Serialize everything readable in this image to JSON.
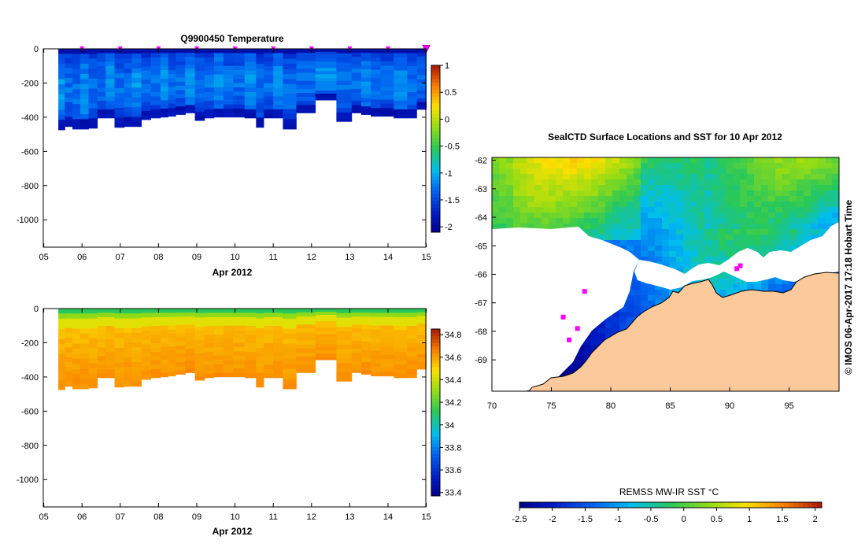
{
  "chart_data": [
    {
      "type": "heatmap",
      "id": "temperature",
      "title": "Q9900450  Temperature",
      "xlabel": "Apr 2012",
      "x_ticks": [
        "05",
        "06",
        "07",
        "08",
        "09",
        "10",
        "11",
        "12",
        "13",
        "14",
        "15"
      ],
      "xlim": [
        5,
        15
      ],
      "y_ticks": [
        "0",
        "-200",
        "-400",
        "-600",
        "-800",
        "-1000"
      ],
      "y_tick_values": [
        0,
        -200,
        -400,
        -600,
        -800,
        -1000
      ],
      "ylim": [
        -1160,
        0
      ],
      "profile_markers_day": [
        6,
        7,
        8,
        9,
        10,
        11,
        12,
        13,
        14,
        15
      ],
      "last_marker_day": 15,
      "colorbar_ticks": [
        "1",
        "0.5",
        "0",
        "-0.5",
        "-1",
        "-1.5",
        "-2"
      ],
      "colorbar_tick_values": [
        1,
        0.5,
        0,
        -0.5,
        -1,
        -1.5,
        -2
      ],
      "colorbar_range": [
        -2.1,
        1.0
      ],
      "profile_starts_day": [
        5.38,
        5.55,
        5.75,
        5.95,
        6.17,
        6.4,
        6.62,
        6.85,
        7.1,
        7.3,
        7.55,
        7.8,
        8.05,
        8.25,
        8.45,
        8.7,
        8.95,
        9.2,
        9.45,
        9.7,
        9.95,
        10.25,
        10.55,
        10.75,
        11.0,
        11.25,
        11.6,
        12.1,
        12.65,
        13.05,
        13.3,
        13.55,
        13.8,
        14.15,
        14.5,
        14.75
      ],
      "profile_max_depth_m": [
        -475,
        -455,
        -470,
        -470,
        -465,
        -405,
        -405,
        -460,
        -455,
        -455,
        -415,
        -405,
        -400,
        -395,
        -385,
        -375,
        -420,
        -405,
        -400,
        -400,
        -400,
        -405,
        -460,
        -405,
        -405,
        -470,
        -375,
        -300,
        -425,
        -375,
        -385,
        -395,
        -395,
        -405,
        -405,
        -355
      ]
    },
    {
      "type": "heatmap",
      "id": "salinity",
      "title": "",
      "xlabel": "Apr 2012",
      "x_ticks": [
        "05",
        "06",
        "07",
        "08",
        "09",
        "10",
        "11",
        "12",
        "13",
        "14",
        "15"
      ],
      "xlim": [
        5,
        15
      ],
      "y_ticks": [
        "0",
        "-200",
        "-400",
        "-600",
        "-800",
        "-1000"
      ],
      "y_tick_values": [
        0,
        -200,
        -400,
        -600,
        -800,
        -1000
      ],
      "ylim": [
        -1160,
        0
      ],
      "colorbar_ticks": [
        "34.8",
        "34.6",
        "34.4",
        "34.2",
        "34",
        "33.8",
        "33.6",
        "33.4"
      ],
      "colorbar_tick_values": [
        34.8,
        34.6,
        34.4,
        34.2,
        34.0,
        33.8,
        33.6,
        33.4
      ],
      "colorbar_range": [
        33.37,
        34.85
      ]
    },
    {
      "type": "heatmap",
      "id": "sst_map",
      "title": "SealCTD Surface Locations and SST for 10 Apr 2012",
      "x_ticks": [
        "70",
        "75",
        "80",
        "85",
        "90",
        "95"
      ],
      "x_tick_values": [
        70,
        75,
        80,
        85,
        90,
        95
      ],
      "xlim": [
        70,
        99.2
      ],
      "y_ticks": [
        "-62",
        "-63",
        "-64",
        "-65",
        "-66",
        "-67",
        "-68",
        "-69"
      ],
      "y_tick_values": [
        -62,
        -63,
        -64,
        -65,
        -66,
        -67,
        -68,
        -69
      ],
      "ylim": [
        -70.1,
        -61.9
      ],
      "colorbar_label": "REMSS MW-IR SST °C",
      "colorbar_ticks": [
        "-2.5",
        "-2",
        "-1.5",
        "-1",
        "-0.5",
        "0",
        "0.5",
        "1",
        "1.5",
        "2"
      ],
      "colorbar_tick_values": [
        -2.5,
        -2,
        -1.5,
        -1,
        -0.5,
        0,
        0.5,
        1,
        1.5,
        2
      ],
      "colorbar_range": [
        -2.5,
        2.1
      ],
      "surface_locations": [
        {
          "lon": 90.6,
          "lat": -65.8
        },
        {
          "lon": 90.9,
          "lat": -65.7
        },
        {
          "lon": 77.8,
          "lat": -66.6
        },
        {
          "lon": 76.0,
          "lat": -67.5
        },
        {
          "lon": 76.5,
          "lat": -68.3
        },
        {
          "lon": 77.2,
          "lat": -67.9
        }
      ],
      "side_caption": "© IMOS 06-Apr-2017 17:18 Hobart Time"
    }
  ]
}
